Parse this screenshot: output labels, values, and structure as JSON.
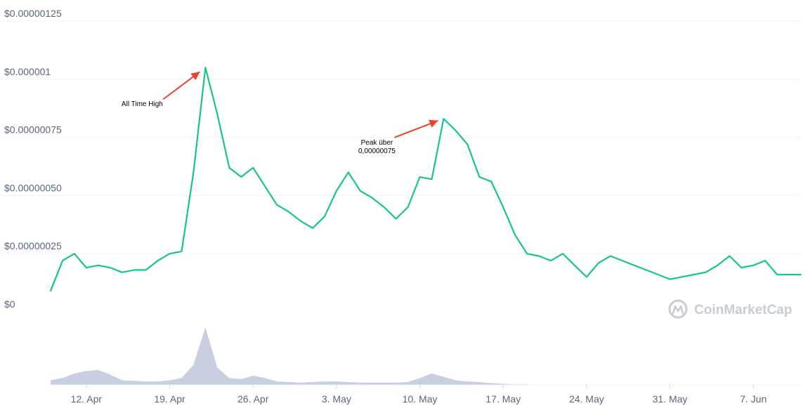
{
  "chart_data": {
    "type": "line",
    "title": "",
    "xlabel": "",
    "ylabel": "",
    "ylim": [
      0,
      1.25e-06
    ],
    "y_ticks": [
      {
        "value": 0,
        "label": "$0"
      },
      {
        "value": 2.5e-07,
        "label": "$0.00000025"
      },
      {
        "value": 5e-07,
        "label": "$0.00000050"
      },
      {
        "value": 7.5e-07,
        "label": "$0.00000075"
      },
      {
        "value": 1e-06,
        "label": "$0.000001"
      },
      {
        "value": 1.25e-06,
        "label": "$0.00000125"
      }
    ],
    "x_range": [
      "2021-04-09",
      "2021-06-11"
    ],
    "x_ticks": [
      {
        "date": "2021-04-12",
        "label": "12. Apr"
      },
      {
        "date": "2021-04-19",
        "label": "19. Apr"
      },
      {
        "date": "2021-04-26",
        "label": "26. Apr"
      },
      {
        "date": "2021-05-03",
        "label": "3. May"
      },
      {
        "date": "2021-05-10",
        "label": "10. May"
      },
      {
        "date": "2021-05-17",
        "label": "17. May"
      },
      {
        "date": "2021-05-24",
        "label": "24. May"
      },
      {
        "date": "2021-05-31",
        "label": "31. May"
      },
      {
        "date": "2021-06-07",
        "label": "7. Jun"
      }
    ],
    "grid": true,
    "legend": "none",
    "series": [
      {
        "color": "#16c784",
        "x": [
          "2021-04-09",
          "2021-04-10",
          "2021-04-11",
          "2021-04-12",
          "2021-04-13",
          "2021-04-14",
          "2021-04-15",
          "2021-04-16",
          "2021-04-17",
          "2021-04-18",
          "2021-04-19",
          "2021-04-20",
          "2021-04-21",
          "2021-04-22",
          "2021-04-23",
          "2021-04-24",
          "2021-04-25",
          "2021-04-26",
          "2021-04-27",
          "2021-04-28",
          "2021-04-29",
          "2021-04-30",
          "2021-05-01",
          "2021-05-02",
          "2021-05-03",
          "2021-05-04",
          "2021-05-05",
          "2021-05-06",
          "2021-05-07",
          "2021-05-08",
          "2021-05-09",
          "2021-05-10",
          "2021-05-11",
          "2021-05-12",
          "2021-05-13",
          "2021-05-14",
          "2021-05-15",
          "2021-05-16",
          "2021-05-17",
          "2021-05-18",
          "2021-05-19",
          "2021-05-20",
          "2021-05-21",
          "2021-05-22",
          "2021-05-23",
          "2021-05-24",
          "2021-05-25",
          "2021-05-26",
          "2021-05-27",
          "2021-05-28",
          "2021-05-29",
          "2021-05-30",
          "2021-05-31",
          "2021-06-01",
          "2021-06-02",
          "2021-06-03",
          "2021-06-04",
          "2021-06-05",
          "2021-06-06",
          "2021-06-07",
          "2021-06-08",
          "2021-06-09",
          "2021-06-10",
          "2021-06-11"
        ],
        "y": [
          9e-08,
          2.2e-07,
          2.5e-07,
          1.9e-07,
          2e-07,
          1.9e-07,
          1.7e-07,
          1.8e-07,
          1.8e-07,
          2.2e-07,
          2.5e-07,
          2.6e-07,
          6e-07,
          1.05e-06,
          8.5e-07,
          6.2e-07,
          5.8e-07,
          6.2e-07,
          5.4e-07,
          4.6e-07,
          4.3e-07,
          3.9e-07,
          3.6e-07,
          4.1e-07,
          5.2e-07,
          6e-07,
          5.2e-07,
          4.9e-07,
          4.5e-07,
          4e-07,
          4.5e-07,
          5.8e-07,
          5.7e-07,
          8.3e-07,
          7.8e-07,
          7.2e-07,
          5.8e-07,
          5.6e-07,
          4.5e-07,
          3.3e-07,
          2.5e-07,
          2.4e-07,
          2.2e-07,
          2.5e-07,
          2e-07,
          1.5e-07,
          2.1e-07,
          2.4e-07,
          2.2e-07,
          2e-07,
          1.8e-07,
          1.6e-07,
          1.4e-07,
          1.5e-07,
          1.6e-07,
          1.7e-07,
          2e-07,
          2.4e-07,
          1.9e-07,
          2e-07,
          2.2e-07,
          1.6e-07,
          1.6e-07,
          1.6e-07
        ]
      }
    ],
    "volume": {
      "color": "#c9cfe0",
      "values": [
        0.08,
        0.12,
        0.2,
        0.24,
        0.26,
        0.18,
        0.08,
        0.07,
        0.06,
        0.06,
        0.08,
        0.12,
        0.35,
        1.0,
        0.3,
        0.12,
        0.1,
        0.16,
        0.12,
        0.06,
        0.05,
        0.04,
        0.05,
        0.06,
        0.06,
        0.05,
        0.04,
        0.04,
        0.04,
        0.04,
        0.05,
        0.12,
        0.2,
        0.14,
        0.08,
        0.06,
        0.05,
        0.03,
        0.02,
        0.01,
        0.01,
        0.0,
        0.0,
        0.0,
        0.0,
        0.0,
        0.0,
        0.0,
        0.0,
        0.0,
        0.0,
        0.0,
        0.0,
        0.0,
        0.0,
        0.0,
        0.0,
        0.0,
        0.0,
        0.0,
        0.0,
        0.0,
        0.0,
        0.0
      ]
    },
    "annotations": [
      {
        "lines": [
          "All Time High"
        ],
        "target_date": "2021-04-22",
        "target_value": 1.05e-06
      },
      {
        "lines": [
          "Peak über",
          "0,00000075"
        ],
        "target_date": "2021-05-12",
        "target_value": 8.4e-07
      }
    ]
  },
  "watermark": {
    "text": "CoinMarketCap",
    "icon": "coinmarketcap-logo-icon",
    "color": "#c8ccd4"
  },
  "colors": {
    "line": "#16c784",
    "arrow": "#f0402a",
    "grid": "#eff2f5",
    "axis_text": "#58667e"
  }
}
